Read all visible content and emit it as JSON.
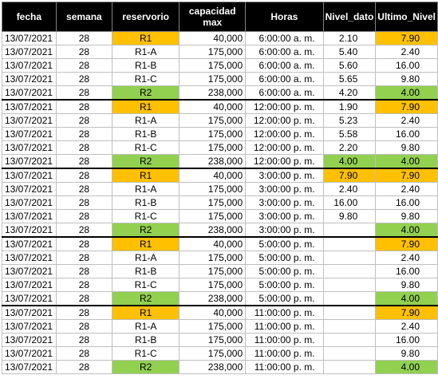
{
  "columns": [
    "fecha",
    "semana",
    "reservorio",
    "capacidad max",
    "Horas",
    "Nivel_dato",
    "Ultimo_Nivel"
  ],
  "colors": {
    "orange": "#ffc000",
    "green": "#92d050",
    "header_bg": "#000000"
  },
  "rows": [
    {
      "fecha": "13/07/2021",
      "semana": "28",
      "reservorio": "R1",
      "capacidad": "40,000",
      "horas": "6:00:00 a. m.",
      "nivel": "2.10",
      "ultimo": "7.90",
      "res_color": "orange",
      "nivel_color": "",
      "ultimo_color": "orange",
      "group_start": true
    },
    {
      "fecha": "13/07/2021",
      "semana": "28",
      "reservorio": "R1-A",
      "capacidad": "175,000",
      "horas": "6:00:00 a. m.",
      "nivel": "5.40",
      "ultimo": "2.40",
      "res_color": "",
      "nivel_color": "",
      "ultimo_color": "",
      "group_start": false
    },
    {
      "fecha": "13/07/2021",
      "semana": "28",
      "reservorio": "R1-B",
      "capacidad": "175,000",
      "horas": "6:00:00 a. m.",
      "nivel": "5.60",
      "ultimo": "16.00",
      "res_color": "",
      "nivel_color": "",
      "ultimo_color": "",
      "group_start": false
    },
    {
      "fecha": "13/07/2021",
      "semana": "28",
      "reservorio": "R1-C",
      "capacidad": "175,000",
      "horas": "6:00:00 a. m.",
      "nivel": "5.65",
      "ultimo": "9.80",
      "res_color": "",
      "nivel_color": "",
      "ultimo_color": "",
      "group_start": false
    },
    {
      "fecha": "13/07/2021",
      "semana": "28",
      "reservorio": "R2",
      "capacidad": "238,000",
      "horas": "6:00:00 a. m.",
      "nivel": "4.20",
      "ultimo": "4.00",
      "res_color": "green",
      "nivel_color": "",
      "ultimo_color": "green",
      "group_start": false
    },
    {
      "fecha": "13/07/2021",
      "semana": "28",
      "reservorio": "R1",
      "capacidad": "40,000",
      "horas": "12:00:00 p. m.",
      "nivel": "1.90",
      "ultimo": "7.90",
      "res_color": "orange",
      "nivel_color": "",
      "ultimo_color": "orange",
      "group_start": true
    },
    {
      "fecha": "13/07/2021",
      "semana": "28",
      "reservorio": "R1-A",
      "capacidad": "175,000",
      "horas": "12:00:00 p. m.",
      "nivel": "5.23",
      "ultimo": "2.40",
      "res_color": "",
      "nivel_color": "",
      "ultimo_color": "",
      "group_start": false
    },
    {
      "fecha": "13/07/2021",
      "semana": "28",
      "reservorio": "R1-B",
      "capacidad": "175,000",
      "horas": "12:00:00 p. m.",
      "nivel": "5.58",
      "ultimo": "16.00",
      "res_color": "",
      "nivel_color": "",
      "ultimo_color": "",
      "group_start": false
    },
    {
      "fecha": "13/07/2021",
      "semana": "28",
      "reservorio": "R1-C",
      "capacidad": "175,000",
      "horas": "12:00:00 p. m.",
      "nivel": "2.20",
      "ultimo": "9.80",
      "res_color": "",
      "nivel_color": "",
      "ultimo_color": "",
      "group_start": false
    },
    {
      "fecha": "13/07/2021",
      "semana": "28",
      "reservorio": "R2",
      "capacidad": "238,000",
      "horas": "12:00:00 p. m.",
      "nivel": "4.00",
      "ultimo": "4.00",
      "res_color": "green",
      "nivel_color": "green",
      "ultimo_color": "green",
      "group_start": false
    },
    {
      "fecha": "13/07/2021",
      "semana": "28",
      "reservorio": "R1",
      "capacidad": "40,000",
      "horas": "3:00:00 p. m.",
      "nivel": "7.90",
      "ultimo": "7.90",
      "res_color": "orange",
      "nivel_color": "orange",
      "ultimo_color": "orange",
      "group_start": true
    },
    {
      "fecha": "13/07/2021",
      "semana": "28",
      "reservorio": "R1-A",
      "capacidad": "175,000",
      "horas": "3:00:00 p. m.",
      "nivel": "2.40",
      "ultimo": "2.40",
      "res_color": "",
      "nivel_color": "",
      "ultimo_color": "",
      "group_start": false
    },
    {
      "fecha": "13/07/2021",
      "semana": "28",
      "reservorio": "R1-B",
      "capacidad": "175,000",
      "horas": "3:00:00 p. m.",
      "nivel": "16.00",
      "ultimo": "16.00",
      "res_color": "",
      "nivel_color": "",
      "ultimo_color": "",
      "group_start": false
    },
    {
      "fecha": "13/07/2021",
      "semana": "28",
      "reservorio": "R1-C",
      "capacidad": "175,000",
      "horas": "3:00:00 p. m.",
      "nivel": "9.80",
      "ultimo": "9.80",
      "res_color": "",
      "nivel_color": "",
      "ultimo_color": "",
      "group_start": false
    },
    {
      "fecha": "13/07/2021",
      "semana": "28",
      "reservorio": "R2",
      "capacidad": "238,000",
      "horas": "3:00:00 p. m.",
      "nivel": "",
      "ultimo": "4.00",
      "res_color": "green",
      "nivel_color": "",
      "ultimo_color": "green",
      "group_start": false
    },
    {
      "fecha": "13/07/2021",
      "semana": "28",
      "reservorio": "R1",
      "capacidad": "40,000",
      "horas": "5:00:00 p. m.",
      "nivel": "",
      "ultimo": "7.90",
      "res_color": "orange",
      "nivel_color": "",
      "ultimo_color": "orange",
      "group_start": true
    },
    {
      "fecha": "13/07/2021",
      "semana": "28",
      "reservorio": "R1-A",
      "capacidad": "175,000",
      "horas": "5:00:00 p. m.",
      "nivel": "",
      "ultimo": "2.40",
      "res_color": "",
      "nivel_color": "",
      "ultimo_color": "",
      "group_start": false
    },
    {
      "fecha": "13/07/2021",
      "semana": "28",
      "reservorio": "R1-B",
      "capacidad": "175,000",
      "horas": "5:00:00 p. m.",
      "nivel": "",
      "ultimo": "16.00",
      "res_color": "",
      "nivel_color": "",
      "ultimo_color": "",
      "group_start": false
    },
    {
      "fecha": "13/07/2021",
      "semana": "28",
      "reservorio": "R1-C",
      "capacidad": "175,000",
      "horas": "5:00:00 p. m.",
      "nivel": "",
      "ultimo": "9.80",
      "res_color": "",
      "nivel_color": "",
      "ultimo_color": "",
      "group_start": false
    },
    {
      "fecha": "13/07/2021",
      "semana": "28",
      "reservorio": "R2",
      "capacidad": "238,000",
      "horas": "5:00:00 p. m.",
      "nivel": "",
      "ultimo": "4.00",
      "res_color": "green",
      "nivel_color": "",
      "ultimo_color": "green",
      "group_start": false
    },
    {
      "fecha": "13/07/2021",
      "semana": "28",
      "reservorio": "R1",
      "capacidad": "40,000",
      "horas": "11:00:00 p. m.",
      "nivel": "",
      "ultimo": "7.90",
      "res_color": "orange",
      "nivel_color": "",
      "ultimo_color": "orange",
      "group_start": true
    },
    {
      "fecha": "13/07/2021",
      "semana": "28",
      "reservorio": "R1-A",
      "capacidad": "175,000",
      "horas": "11:00:00 p. m.",
      "nivel": "",
      "ultimo": "2.40",
      "res_color": "",
      "nivel_color": "",
      "ultimo_color": "",
      "group_start": false
    },
    {
      "fecha": "13/07/2021",
      "semana": "28",
      "reservorio": "R1-B",
      "capacidad": "175,000",
      "horas": "11:00:00 p. m.",
      "nivel": "",
      "ultimo": "16.00",
      "res_color": "",
      "nivel_color": "",
      "ultimo_color": "",
      "group_start": false
    },
    {
      "fecha": "13/07/2021",
      "semana": "28",
      "reservorio": "R1-C",
      "capacidad": "175,000",
      "horas": "11:00:00 p. m.",
      "nivel": "",
      "ultimo": "9.80",
      "res_color": "",
      "nivel_color": "",
      "ultimo_color": "",
      "group_start": false
    },
    {
      "fecha": "13/07/2021",
      "semana": "28",
      "reservorio": "R2",
      "capacidad": "238,000",
      "horas": "11:00:00 p. m.",
      "nivel": "",
      "ultimo": "4.00",
      "res_color": "green",
      "nivel_color": "",
      "ultimo_color": "green",
      "group_start": false
    }
  ]
}
